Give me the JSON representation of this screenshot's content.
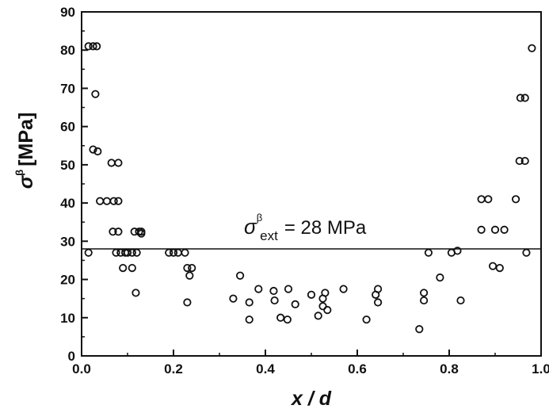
{
  "chart_data": {
    "type": "scatter",
    "title": "",
    "xlabel": "x / d",
    "ylabel": "[MPa]",
    "ylabel_symbol": "σ",
    "ylabel_superscript": "β",
    "xlim": [
      0.0,
      1.0
    ],
    "ylim": [
      0,
      90
    ],
    "x_ticks": [
      0.0,
      0.2,
      0.4,
      0.6,
      0.8,
      1.0
    ],
    "x_tick_labels": [
      "0.0",
      "0.2",
      "0.4",
      "0.6",
      "0.8",
      "1.0"
    ],
    "y_ticks": [
      0,
      10,
      20,
      30,
      40,
      50,
      60,
      70,
      80,
      90
    ],
    "y_tick_labels": [
      "0",
      "10",
      "20",
      "30",
      "40",
      "50",
      "60",
      "70",
      "80",
      "90"
    ],
    "grid": false,
    "legend": "none",
    "marker": "open-circle",
    "reference_line": {
      "y": 28,
      "label_symbol": "σ",
      "label_superscript": "β",
      "label_subscript": "ext",
      "label_value": "= 28 MPa"
    },
    "series": [
      {
        "points": [
          [
            0.015,
            81
          ],
          [
            0.025,
            81
          ],
          [
            0.033,
            81
          ],
          [
            0.03,
            68.5
          ],
          [
            0.025,
            54
          ],
          [
            0.035,
            53.5
          ],
          [
            0.04,
            40.5
          ],
          [
            0.055,
            40.5
          ],
          [
            0.07,
            40.5
          ],
          [
            0.08,
            40.5
          ],
          [
            0.065,
            50.5
          ],
          [
            0.08,
            50.5
          ],
          [
            0.068,
            32.5
          ],
          [
            0.08,
            32.5
          ],
          [
            0.115,
            32.5
          ],
          [
            0.125,
            32.5
          ],
          [
            0.13,
            32
          ],
          [
            0.13,
            32.5
          ],
          [
            0.015,
            27
          ],
          [
            0.075,
            27
          ],
          [
            0.085,
            27
          ],
          [
            0.095,
            27
          ],
          [
            0.1,
            27
          ],
          [
            0.11,
            27
          ],
          [
            0.12,
            27
          ],
          [
            0.09,
            23
          ],
          [
            0.11,
            23
          ],
          [
            0.118,
            16.5
          ],
          [
            0.19,
            27
          ],
          [
            0.2,
            27
          ],
          [
            0.21,
            27
          ],
          [
            0.225,
            27
          ],
          [
            0.23,
            23
          ],
          [
            0.24,
            23
          ],
          [
            0.235,
            21
          ],
          [
            0.23,
            14
          ],
          [
            0.33,
            15
          ],
          [
            0.345,
            21
          ],
          [
            0.365,
            14
          ],
          [
            0.365,
            9.5
          ],
          [
            0.385,
            17.5
          ],
          [
            0.418,
            17
          ],
          [
            0.42,
            14.5
          ],
          [
            0.433,
            10
          ],
          [
            0.448,
            9.5
          ],
          [
            0.45,
            17.5
          ],
          [
            0.465,
            13.5
          ],
          [
            0.5,
            16
          ],
          [
            0.515,
            10.5
          ],
          [
            0.525,
            15
          ],
          [
            0.525,
            13
          ],
          [
            0.53,
            16.5
          ],
          [
            0.535,
            12
          ],
          [
            0.57,
            17.5
          ],
          [
            0.62,
            9.5
          ],
          [
            0.64,
            16
          ],
          [
            0.645,
            17.5
          ],
          [
            0.645,
            14
          ],
          [
            0.735,
            7
          ],
          [
            0.745,
            16.5
          ],
          [
            0.745,
            14.5
          ],
          [
            0.755,
            27
          ],
          [
            0.78,
            20.5
          ],
          [
            0.805,
            27
          ],
          [
            0.818,
            27.5
          ],
          [
            0.825,
            14.5
          ],
          [
            0.87,
            41
          ],
          [
            0.885,
            41
          ],
          [
            0.87,
            33
          ],
          [
            0.9,
            33
          ],
          [
            0.92,
            33
          ],
          [
            0.895,
            23.5
          ],
          [
            0.91,
            23
          ],
          [
            0.945,
            41
          ],
          [
            0.953,
            51
          ],
          [
            0.965,
            51
          ],
          [
            0.955,
            67.5
          ],
          [
            0.965,
            67.5
          ],
          [
            0.968,
            27
          ],
          [
            0.98,
            80.5
          ]
        ]
      }
    ]
  }
}
